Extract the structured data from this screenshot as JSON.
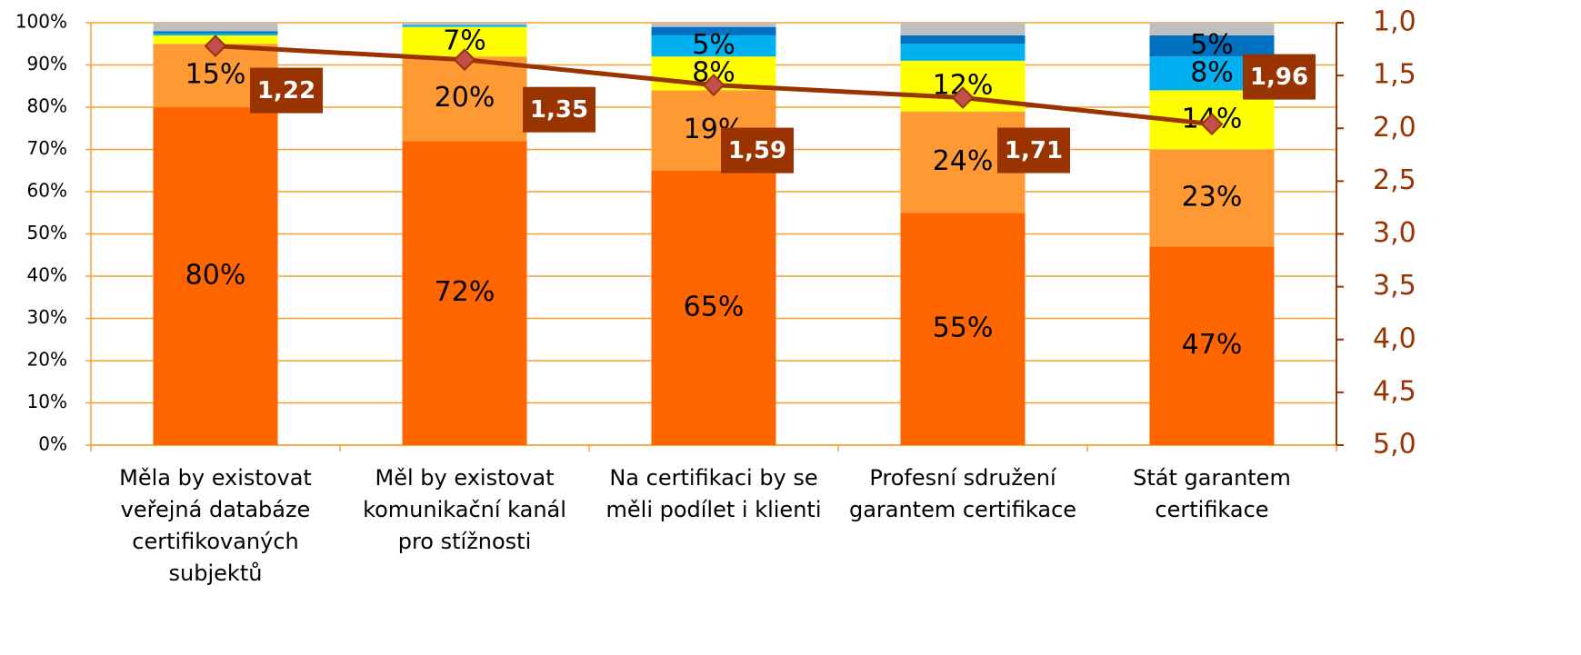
{
  "chart_data": {
    "type": "stacked-bar-line",
    "categories": [
      [
        "Měla by existovat",
        "veřejná databáze",
        "certifikovaných",
        "subjektů"
      ],
      [
        "Měl by existovat",
        "komunikační kanál",
        "pro stížnosti"
      ],
      [
        "Na certifikaci by se",
        "měli podílet i klienti"
      ],
      [
        "Profesní sdružení",
        "garantem certifikace"
      ],
      [
        "Stát garantem",
        "certifikace"
      ]
    ],
    "series": [
      {
        "color": "#FF6600",
        "values": [
          80,
          72,
          65,
          55,
          47
        ],
        "value_labels": [
          "80%",
          "72%",
          "65%",
          "55%",
          "47%"
        ]
      },
      {
        "color": "#FF9933",
        "values": [
          15,
          20,
          19,
          24,
          23
        ],
        "value_labels": [
          "15%",
          "20%",
          "19%",
          "24%",
          "23%"
        ]
      },
      {
        "color": "#FFFF00",
        "values": [
          2,
          7,
          8,
          12,
          14
        ],
        "value_labels": [
          null,
          "7%",
          "8%",
          "12%",
          "14%"
        ]
      },
      {
        "color": "#00B0F0",
        "values": [
          0.5,
          0.5,
          5,
          4,
          8
        ],
        "value_labels": [
          null,
          null,
          "5%",
          null,
          "8%"
        ]
      },
      {
        "color": "#0070C0",
        "values": [
          0.5,
          0,
          2,
          2,
          5
        ],
        "value_labels": [
          null,
          null,
          null,
          null,
          "5%"
        ]
      },
      {
        "color": "#BFBFBF",
        "values": [
          2,
          0.5,
          1,
          3,
          3
        ],
        "value_labels": [
          null,
          null,
          null,
          null,
          null
        ]
      },
      {
        "type": "line",
        "axis": "y2",
        "color": "#993300",
        "values": [
          1.22,
          1.35,
          1.59,
          1.71,
          1.96
        ],
        "value_labels": [
          "1,22",
          "1,35",
          "1,59",
          "1,71",
          "1,96"
        ]
      }
    ],
    "ylim": [
      0,
      100
    ],
    "yticks": [
      {
        "value": 0,
        "label": "0%"
      },
      {
        "value": 10,
        "label": "10%"
      },
      {
        "value": 20,
        "label": "20%"
      },
      {
        "value": 30,
        "label": "30%"
      },
      {
        "value": 40,
        "label": "40%"
      },
      {
        "value": 50,
        "label": "50%"
      },
      {
        "value": 60,
        "label": "60%"
      },
      {
        "value": 70,
        "label": "70%"
      },
      {
        "value": 80,
        "label": "80%"
      },
      {
        "value": 90,
        "label": "90%"
      },
      {
        "value": 100,
        "label": "100%"
      }
    ],
    "y2lim": [
      5,
      1
    ],
    "y2ticks": [
      {
        "value": 1,
        "label": "1,0"
      },
      {
        "value": 1.5,
        "label": "1,5"
      },
      {
        "value": 2,
        "label": "2,0"
      },
      {
        "value": 2.5,
        "label": "2,5"
      },
      {
        "value": 3,
        "label": "3,0"
      },
      {
        "value": 3.5,
        "label": "3,5"
      },
      {
        "value": 4,
        "label": "4,0"
      },
      {
        "value": 4.5,
        "label": "4,5"
      },
      {
        "value": 5,
        "label": "5,0"
      }
    ],
    "grid": true
  }
}
